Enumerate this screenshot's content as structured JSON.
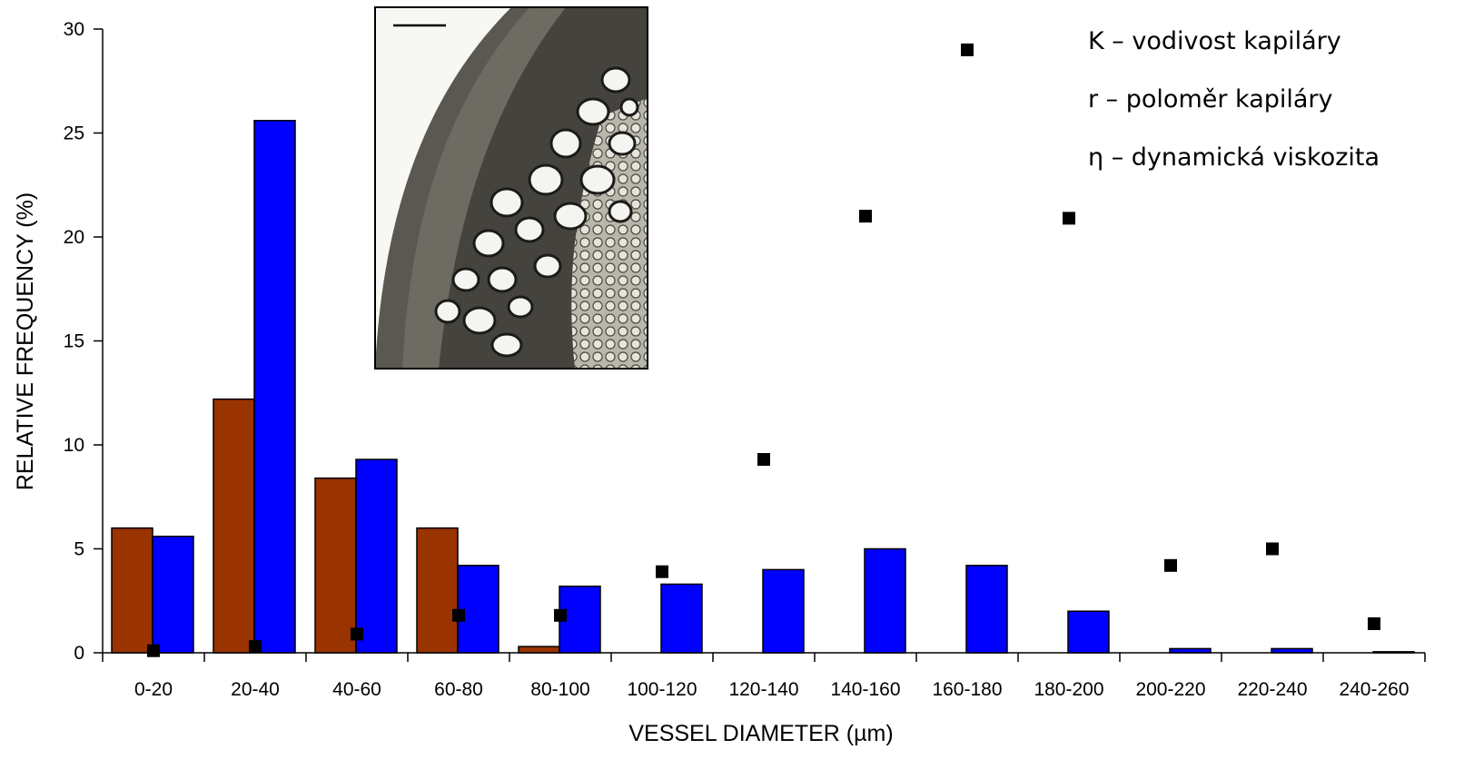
{
  "chart_data": {
    "type": "bar",
    "title": "",
    "xlabel": "VESSEL DIAMETER (µm)",
    "ylabel": "RELATIVE FREQUENCY  (%)",
    "ylim": [
      0,
      30
    ],
    "yticks": [
      0,
      5,
      10,
      15,
      20,
      25,
      30
    ],
    "grid": false,
    "categories": [
      "0-20",
      "20-40",
      "40-60",
      "60-80",
      "80-100",
      "100-120",
      "120-140",
      "140-160",
      "160-180",
      "180-200",
      "200-220",
      "220-240",
      "240-260"
    ],
    "series": [
      {
        "type": "bar",
        "color": "#993300",
        "values": [
          6.0,
          12.2,
          8.4,
          6.0,
          0.3,
          0,
          0,
          0,
          0,
          0,
          0,
          0,
          0
        ]
      },
      {
        "type": "bar",
        "color": "#0000ff",
        "values": [
          5.6,
          25.6,
          9.3,
          4.2,
          3.2,
          3.3,
          4.0,
          5.0,
          4.2,
          2.0,
          0.2,
          0.2,
          0.05
        ]
      },
      {
        "type": "scatter",
        "marker": "square",
        "color": "#000000",
        "values": [
          0.1,
          0.3,
          0.9,
          1.8,
          1.8,
          3.9,
          9.3,
          21.0,
          29.0,
          20.9,
          4.2,
          5.0,
          1.4
        ]
      }
    ],
    "legend_text": [
      "K – vodivost kapiláry",
      "r – poloměr kapiláry",
      "η – dynamická viskozita"
    ],
    "legend_position": "top-right"
  },
  "inset": {
    "description_icon": "microscope-cross-section-image",
    "has_scale_bar": true
  }
}
